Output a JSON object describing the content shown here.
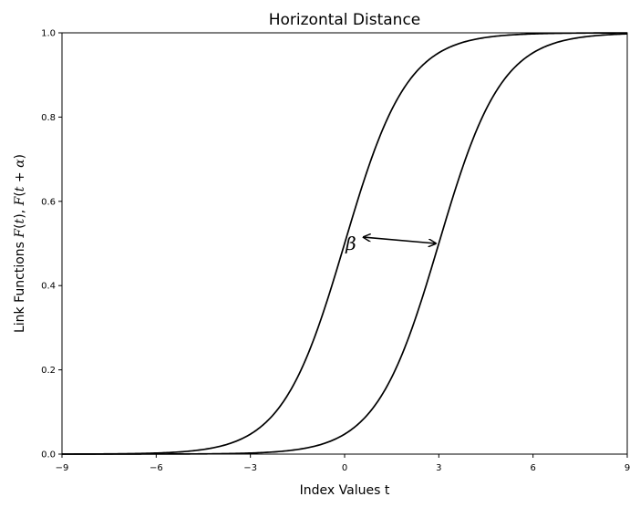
{
  "chart_data": {
    "type": "line",
    "title": "Horizontal Distance",
    "xlabel": "Index Values t",
    "ylabel_parts": [
      "Link Functions ",
      "F",
      "(",
      "t",
      "), ",
      "F",
      "(",
      "t",
      " + ",
      "α",
      ")"
    ],
    "xlim": [
      -9,
      9
    ],
    "ylim": [
      0,
      1
    ],
    "xticks": [
      -9,
      -6,
      -3,
      0,
      3,
      6,
      9
    ],
    "xtick_labels": [
      "−9",
      "−6",
      "−3",
      "0",
      "3",
      "6",
      "9"
    ],
    "yticks": [
      0.0,
      0.2,
      0.4,
      0.6,
      0.8,
      1.0
    ],
    "ytick_labels": [
      "0.0",
      "0.2",
      "0.4",
      "0.6",
      "0.8",
      "1.0"
    ],
    "grid": false,
    "line_color": "#000000",
    "series": [
      {
        "x": [
          -9,
          -8,
          -7,
          -6,
          -5,
          -4,
          -3,
          -2,
          -1.5,
          -1,
          -0.5,
          0,
          0.5,
          1,
          1.5,
          2,
          3,
          4,
          5,
          6,
          7,
          8,
          9
        ],
        "y": [
          0.0001,
          0.0003,
          0.0009,
          0.0025,
          0.0067,
          0.018,
          0.047,
          0.119,
          0.182,
          0.269,
          0.378,
          0.5,
          0.622,
          0.731,
          0.818,
          0.881,
          0.953,
          0.982,
          0.993,
          0.998,
          0.999,
          1.0,
          1.0
        ]
      },
      {
        "x": [
          -9,
          -8,
          -7,
          -6,
          -5,
          -4,
          -3,
          -2,
          -1,
          0,
          1,
          1.5,
          2,
          2.5,
          3,
          3.5,
          4,
          4.5,
          5,
          6,
          7,
          8,
          9
        ],
        "y": [
          0.0,
          0.0,
          0.0,
          0.0001,
          0.0003,
          0.0009,
          0.0025,
          0.0067,
          0.018,
          0.047,
          0.119,
          0.182,
          0.269,
          0.378,
          0.5,
          0.622,
          0.731,
          0.818,
          0.881,
          0.953,
          0.982,
          0.993,
          0.998
        ]
      }
    ],
    "annotation": {
      "text": "β",
      "text_at": [
        0.2,
        0.5
      ],
      "arrow_from": [
        0.6,
        0.515
      ],
      "arrow_to": [
        2.9,
        0.5
      ]
    }
  }
}
